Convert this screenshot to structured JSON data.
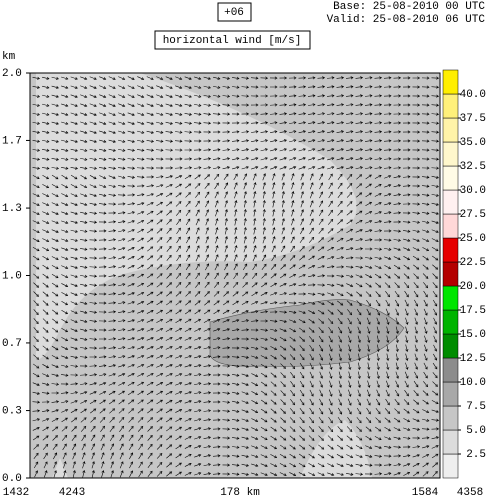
{
  "chart_data": {
    "type": "vector-field",
    "title": "horizontal wind [m/s]",
    "lead": "+06",
    "base": "Base: 25-08-2010  00 UTC",
    "valid": "Valid: 25-08-2010  06 UTC",
    "y_label": "km",
    "ylim": [
      0,
      2
    ],
    "yticks": [
      {
        "value": 0,
        "label": "0.0"
      },
      {
        "value": 0.333,
        "label": "0.3"
      },
      {
        "value": 0.667,
        "label": "0.7"
      },
      {
        "value": 1,
        "label": "1.0"
      },
      {
        "value": 1.333,
        "label": "1.3"
      },
      {
        "value": 1.667,
        "label": "1.7"
      },
      {
        "value": 2,
        "label": "2.0"
      }
    ],
    "x_labels": [
      "1432",
      "4243",
      "178 km",
      "1584",
      "4358"
    ],
    "colorbar": {
      "bins": [
        0,
        2.5,
        5,
        7.5,
        10,
        12.5,
        15,
        17.5,
        20,
        22.5,
        25,
        27.5,
        30,
        32.5,
        35,
        37.5,
        40,
        42.5
      ],
      "colors": [
        "#eeeeee",
        "#dcdcdc",
        "#c6c6c6",
        "#a8a8a8",
        "#8c8c8c",
        "#008c00",
        "#00b400",
        "#00e600",
        "#b40000",
        "#e60000",
        "#ffd8d8",
        "#fff0f0",
        "#fffbe6",
        "#fff7cc",
        "#fff3a8",
        "#fff07a",
        "#ffee00"
      ],
      "ticks": [
        2.5,
        {
          "value": 5,
          "label": "5.0"
        },
        7.5,
        {
          "value": 10,
          "label": "10.0"
        },
        12.5,
        {
          "value": 15,
          "label": "15.0"
        },
        17.5,
        {
          "value": 20,
          "label": "20.0"
        },
        22.5,
        {
          "value": 25,
          "label": "25.0"
        },
        27.5,
        {
          "value": 30,
          "label": "30.0"
        },
        32.5,
        {
          "value": 35,
          "label": "35.0"
        },
        37.5,
        {
          "value": 40,
          "label": "40.0"
        }
      ]
    }
  }
}
